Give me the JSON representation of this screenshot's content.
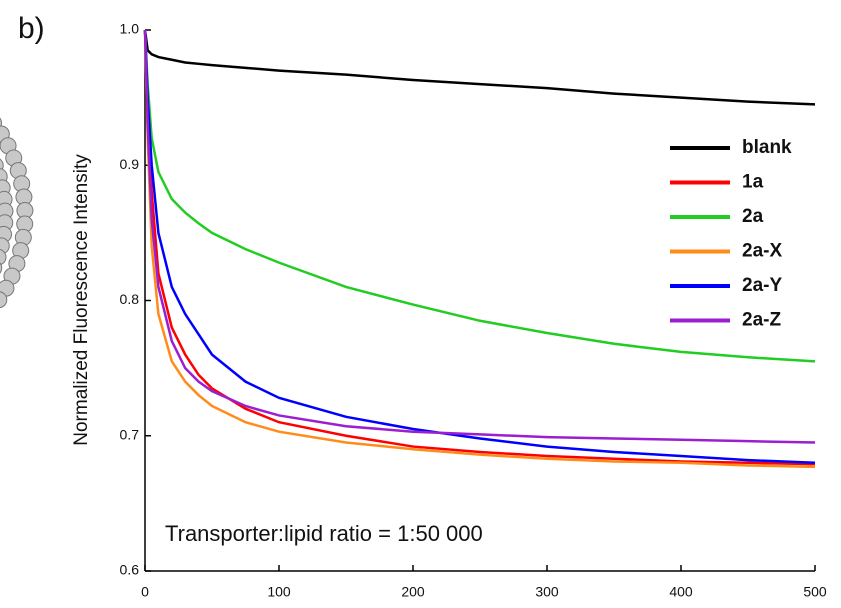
{
  "chart_data": {
    "type": "line",
    "panel_label": "b)",
    "ylabel": "Normalized Fluorescence Intensity",
    "annotation": "Transporter:lipid ratio = 1:50 000",
    "x": [
      0,
      2,
      5,
      10,
      20,
      30,
      40,
      50,
      75,
      100,
      150,
      200,
      250,
      300,
      350,
      400,
      450,
      500
    ],
    "series": [
      {
        "name": "blank",
        "color": "#000000",
        "values": [
          1.0,
          0.985,
          0.982,
          0.98,
          0.978,
          0.976,
          0.975,
          0.974,
          0.972,
          0.97,
          0.967,
          0.963,
          0.96,
          0.957,
          0.953,
          0.95,
          0.947,
          0.945
        ]
      },
      {
        "name": "1a",
        "color": "#ff0000",
        "values": [
          1.0,
          0.95,
          0.88,
          0.82,
          0.78,
          0.76,
          0.745,
          0.735,
          0.72,
          0.71,
          0.7,
          0.692,
          0.688,
          0.685,
          0.683,
          0.681,
          0.68,
          0.679
        ]
      },
      {
        "name": "2a",
        "color": "#22cc22",
        "values": [
          1.0,
          0.96,
          0.92,
          0.895,
          0.875,
          0.865,
          0.857,
          0.85,
          0.838,
          0.828,
          0.81,
          0.797,
          0.785,
          0.776,
          0.768,
          0.762,
          0.758,
          0.755
        ]
      },
      {
        "name": "2a-X",
        "color": "#ff8c1a",
        "values": [
          1.0,
          0.92,
          0.84,
          0.79,
          0.755,
          0.74,
          0.73,
          0.722,
          0.71,
          0.703,
          0.695,
          0.69,
          0.686,
          0.683,
          0.681,
          0.68,
          0.678,
          0.677
        ]
      },
      {
        "name": "2a-Y",
        "color": "#0000ff",
        "values": [
          1.0,
          0.95,
          0.9,
          0.85,
          0.81,
          0.79,
          0.775,
          0.76,
          0.74,
          0.728,
          0.714,
          0.705,
          0.698,
          0.692,
          0.688,
          0.685,
          0.682,
          0.68
        ]
      },
      {
        "name": "2a-Z",
        "color": "#9b1fd1",
        "values": [
          1.0,
          0.93,
          0.86,
          0.81,
          0.77,
          0.75,
          0.74,
          0.733,
          0.722,
          0.715,
          0.707,
          0.703,
          0.701,
          0.699,
          0.698,
          0.697,
          0.696,
          0.695
        ]
      }
    ],
    "xlim": [
      0,
      500
    ],
    "xticks": [
      0,
      100,
      200,
      300,
      400,
      500
    ],
    "ylim": [
      0.6,
      1.0
    ],
    "yticks": [
      0.6,
      0.7,
      0.8,
      0.9,
      {
        "value": 1.0,
        "label": "1.0"
      }
    ],
    "legend": "upper right"
  }
}
